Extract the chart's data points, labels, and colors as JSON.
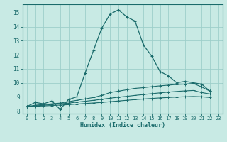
{
  "xlabel": "Humidex (Indice chaleur)",
  "xlim": [
    -0.5,
    23.5
  ],
  "ylim": [
    7.8,
    15.6
  ],
  "xticks": [
    0,
    1,
    2,
    3,
    4,
    5,
    6,
    7,
    8,
    9,
    10,
    11,
    12,
    13,
    14,
    15,
    16,
    17,
    18,
    19,
    20,
    21,
    22,
    23
  ],
  "yticks": [
    8,
    9,
    10,
    11,
    12,
    13,
    14,
    15
  ],
  "bg_color": "#c8eae4",
  "grid_color": "#9ecfca",
  "line_color": "#1a6b6b",
  "line1_x": [
    0,
    1,
    2,
    3,
    4,
    5,
    6,
    7,
    8,
    9,
    10,
    11,
    12,
    13,
    14,
    15,
    16,
    17,
    18,
    19,
    20,
    21,
    22
  ],
  "line1_y": [
    8.3,
    8.6,
    8.5,
    8.7,
    8.1,
    8.8,
    9.0,
    10.7,
    12.3,
    13.9,
    14.9,
    15.2,
    14.7,
    14.4,
    12.7,
    11.9,
    10.8,
    10.5,
    10.0,
    10.1,
    10.0,
    9.9,
    9.4
  ],
  "line2_x": [
    0,
    1,
    2,
    3,
    4,
    5,
    6,
    7,
    8,
    9,
    10,
    11,
    12,
    13,
    14,
    15,
    16,
    17,
    18,
    19,
    20,
    21,
    22
  ],
  "line2_y": [
    8.3,
    8.4,
    8.45,
    8.5,
    8.55,
    8.65,
    8.75,
    8.85,
    8.95,
    9.1,
    9.3,
    9.4,
    9.5,
    9.6,
    9.65,
    9.72,
    9.78,
    9.83,
    9.88,
    9.9,
    9.95,
    9.7,
    9.4
  ],
  "line3_x": [
    0,
    1,
    2,
    3,
    4,
    5,
    6,
    7,
    8,
    9,
    10,
    11,
    12,
    13,
    14,
    15,
    16,
    17,
    18,
    19,
    20,
    21,
    22
  ],
  "line3_y": [
    8.3,
    8.35,
    8.4,
    8.45,
    8.5,
    8.55,
    8.62,
    8.68,
    8.75,
    8.82,
    8.9,
    8.97,
    9.03,
    9.1,
    9.16,
    9.22,
    9.28,
    9.33,
    9.38,
    9.42,
    9.45,
    9.3,
    9.2
  ],
  "line4_x": [
    0,
    1,
    2,
    3,
    4,
    5,
    6,
    7,
    8,
    9,
    10,
    11,
    12,
    13,
    14,
    15,
    16,
    17,
    18,
    19,
    20,
    21,
    22
  ],
  "line4_y": [
    8.3,
    8.32,
    8.35,
    8.38,
    8.41,
    8.44,
    8.48,
    8.52,
    8.56,
    8.6,
    8.65,
    8.7,
    8.75,
    8.8,
    8.84,
    8.88,
    8.92,
    8.95,
    8.98,
    9.0,
    9.02,
    9.0,
    8.95
  ]
}
